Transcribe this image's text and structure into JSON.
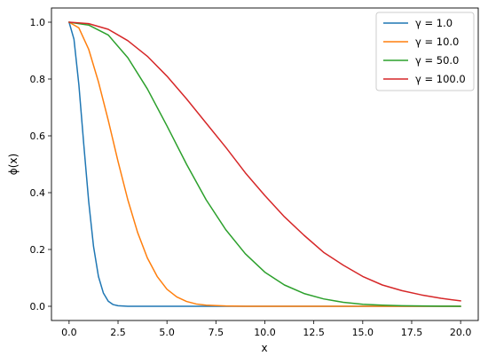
{
  "chart_data": {
    "type": "line",
    "title": "",
    "xlabel": "x",
    "ylabel": "ϕ(x)",
    "xlim": [
      -0.9,
      20.9
    ],
    "ylim": [
      -0.05,
      1.05
    ],
    "xticks": [
      0.0,
      2.5,
      5.0,
      7.5,
      10.0,
      12.5,
      15.0,
      17.5,
      20.0
    ],
    "xtick_labels": [
      "0.0",
      "2.5",
      "5.0",
      "7.5",
      "10.0",
      "12.5",
      "15.0",
      "17.5",
      "20.0"
    ],
    "yticks": [
      0.0,
      0.2,
      0.4,
      0.6,
      0.8,
      1.0
    ],
    "ytick_labels": [
      "0.0",
      "0.2",
      "0.4",
      "0.6",
      "0.8",
      "1.0"
    ],
    "grid": false,
    "legend_position": "top-right",
    "series": [
      {
        "name": "γ = 1.0",
        "color": "#1f77b4",
        "x": [
          0,
          0.25,
          0.5,
          0.75,
          1.0,
          1.25,
          1.5,
          1.75,
          2.0,
          2.25,
          2.5,
          3.0,
          4.0,
          6.0,
          10.0,
          15.0,
          20.0
        ],
        "y": [
          1.0,
          0.94,
          0.78,
          0.57,
          0.37,
          0.21,
          0.105,
          0.047,
          0.018,
          0.006,
          0.002,
          0.0,
          0.0,
          0.0,
          0.0,
          0.0,
          0.0
        ]
      },
      {
        "name": "γ = 10.0",
        "color": "#ff7f0e",
        "x": [
          0,
          0.5,
          1.0,
          1.5,
          2.0,
          2.5,
          3.0,
          3.5,
          4.0,
          4.5,
          5.0,
          5.5,
          6.0,
          6.5,
          7.0,
          8.0,
          9.0,
          10.0,
          12.0,
          15.0,
          20.0
        ],
        "y": [
          1.0,
          0.98,
          0.905,
          0.79,
          0.655,
          0.51,
          0.375,
          0.26,
          0.17,
          0.105,
          0.06,
          0.033,
          0.017,
          0.008,
          0.004,
          0.001,
          0.0,
          0.0,
          0.0,
          0.0,
          0.0
        ]
      },
      {
        "name": "γ = 50.0",
        "color": "#2ca02c",
        "x": [
          0,
          1,
          2,
          3,
          4,
          5,
          6,
          7,
          8,
          9,
          10,
          11,
          12,
          13,
          14,
          15,
          16,
          17,
          18,
          19,
          20
        ],
        "y": [
          1.0,
          0.99,
          0.955,
          0.875,
          0.765,
          0.635,
          0.5,
          0.375,
          0.27,
          0.185,
          0.12,
          0.075,
          0.045,
          0.026,
          0.014,
          0.007,
          0.004,
          0.002,
          0.001,
          0.0005,
          0.0
        ]
      },
      {
        "name": "γ = 100.0",
        "color": "#d62728",
        "x": [
          0,
          1,
          2,
          3,
          4,
          5,
          6,
          7,
          8,
          9,
          10,
          11,
          12,
          13,
          14,
          15,
          16,
          17,
          18,
          19,
          20
        ],
        "y": [
          1.0,
          0.995,
          0.975,
          0.935,
          0.88,
          0.81,
          0.73,
          0.645,
          0.56,
          0.47,
          0.39,
          0.315,
          0.25,
          0.19,
          0.145,
          0.105,
          0.075,
          0.055,
          0.04,
          0.028,
          0.019
        ]
      }
    ]
  }
}
